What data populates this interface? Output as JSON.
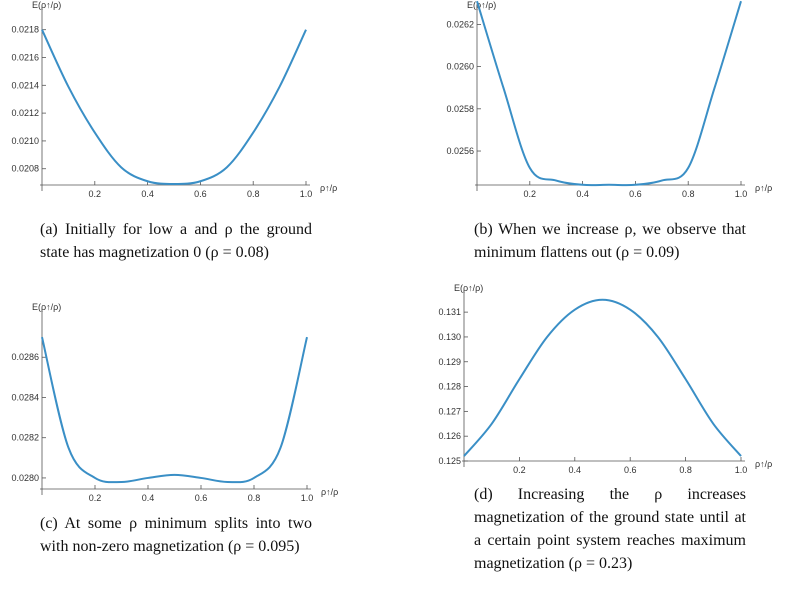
{
  "chart_data": [
    {
      "type": "line",
      "y_label": "E(ρ↑/ρ)",
      "x_label": "ρ↑/ρ",
      "color": "#3a8fc6",
      "caption": "(a) Initially for low a and ρ the ground state has magnetization 0 (ρ = 0.08)",
      "x": [
        0,
        0.1,
        0.2,
        0.3,
        0.4,
        0.5,
        0.6,
        0.7,
        0.8,
        0.9,
        1.0
      ],
      "values": [
        0.0218,
        0.02139,
        0.02106,
        0.02081,
        0.02071,
        0.02069,
        0.02071,
        0.02081,
        0.02106,
        0.02139,
        0.0218
      ],
      "xlim": [
        0,
        1.0
      ],
      "ylim": [
        0.020683,
        0.02192
      ],
      "xticks": [
        0.2,
        0.4,
        0.6,
        0.8,
        {
          "value": 1.0,
          "label": "1.0"
        }
      ],
      "yticks": [
        0.0208,
        {
          "value": 0.021,
          "label": "0.0210"
        },
        0.0212,
        0.0214,
        0.0216,
        0.0218
      ]
    },
    {
      "type": "line",
      "y_label": "E(ρ↑/ρ)",
      "x_label": "ρ↑/ρ",
      "color": "#3a8fc6",
      "caption": "(b) When we increase ρ, we observe that minimum flattens out (ρ = 0.09)",
      "x": [
        0,
        0.1,
        0.2,
        0.3,
        0.4,
        0.5,
        0.6,
        0.7,
        0.8,
        0.9,
        1.0
      ],
      "values": [
        0.02631,
        0.0259,
        0.02552,
        0.02546,
        0.02544,
        0.02544,
        0.02544,
        0.02546,
        0.02552,
        0.0259,
        0.02631
      ],
      "xlim": [
        0,
        1.0
      ],
      "ylim": [
        0.025439,
        0.026254
      ],
      "xticks": [
        0.2,
        0.4,
        0.6,
        0.8,
        {
          "value": 1.0,
          "label": "1.0"
        }
      ],
      "yticks": [
        0.0256,
        0.0258,
        {
          "value": 0.026,
          "label": "0.0260"
        },
        0.0262
      ]
    },
    {
      "type": "line",
      "y_label": "E(ρ↑/ρ)",
      "x_label": "ρ↑/ρ",
      "color": "#3a8fc6",
      "caption": "(c) At some ρ minimum splits into two with non-zero magnetization (ρ = 0.095)",
      "x": [
        0,
        0.1,
        0.2,
        0.3,
        0.4,
        0.5,
        0.6,
        0.7,
        0.8,
        0.9,
        1.0
      ],
      "values": [
        0.0287,
        0.02815,
        0.028,
        0.02798,
        0.028,
        0.028015,
        0.028,
        0.02798,
        0.028,
        0.02815,
        0.0287
      ],
      "xlim": [
        0,
        1.0
      ],
      "ylim": [
        0.027945,
        0.02881
      ],
      "xticks": [
        0.2,
        0.4,
        0.6,
        0.8,
        {
          "value": 1.0,
          "label": "1.0"
        }
      ],
      "yticks": [
        {
          "value": 0.028,
          "label": "0.0280"
        },
        0.0282,
        0.0284,
        0.0286
      ]
    },
    {
      "type": "line",
      "y_label": "E(ρ↑/ρ)",
      "x_label": "ρ↑/ρ",
      "color": "#3a8fc6",
      "caption": "(d) Increasing the ρ increases magnetization of the ground state until at a certain point system reaches maximum magnetization (ρ = 0.23)",
      "x": [
        0,
        0.1,
        0.2,
        0.3,
        0.4,
        0.5,
        0.6,
        0.7,
        0.8,
        0.9,
        1.0
      ],
      "values": [
        0.1252,
        0.1265,
        0.1283,
        0.13,
        0.1311,
        0.1315,
        0.1311,
        0.13,
        0.1283,
        0.1265,
        0.1252
      ],
      "xlim": [
        0,
        1.0
      ],
      "ylim": [
        0.125,
        0.13165
      ],
      "xticks": [
        0.2,
        0.4,
        0.6,
        0.8,
        {
          "value": 1.0,
          "label": "1.0"
        }
      ],
      "yticks": [
        0.125,
        0.126,
        0.127,
        0.128,
        0.129,
        {
          "value": 0.13,
          "label": "0.130"
        },
        0.131
      ]
    }
  ]
}
